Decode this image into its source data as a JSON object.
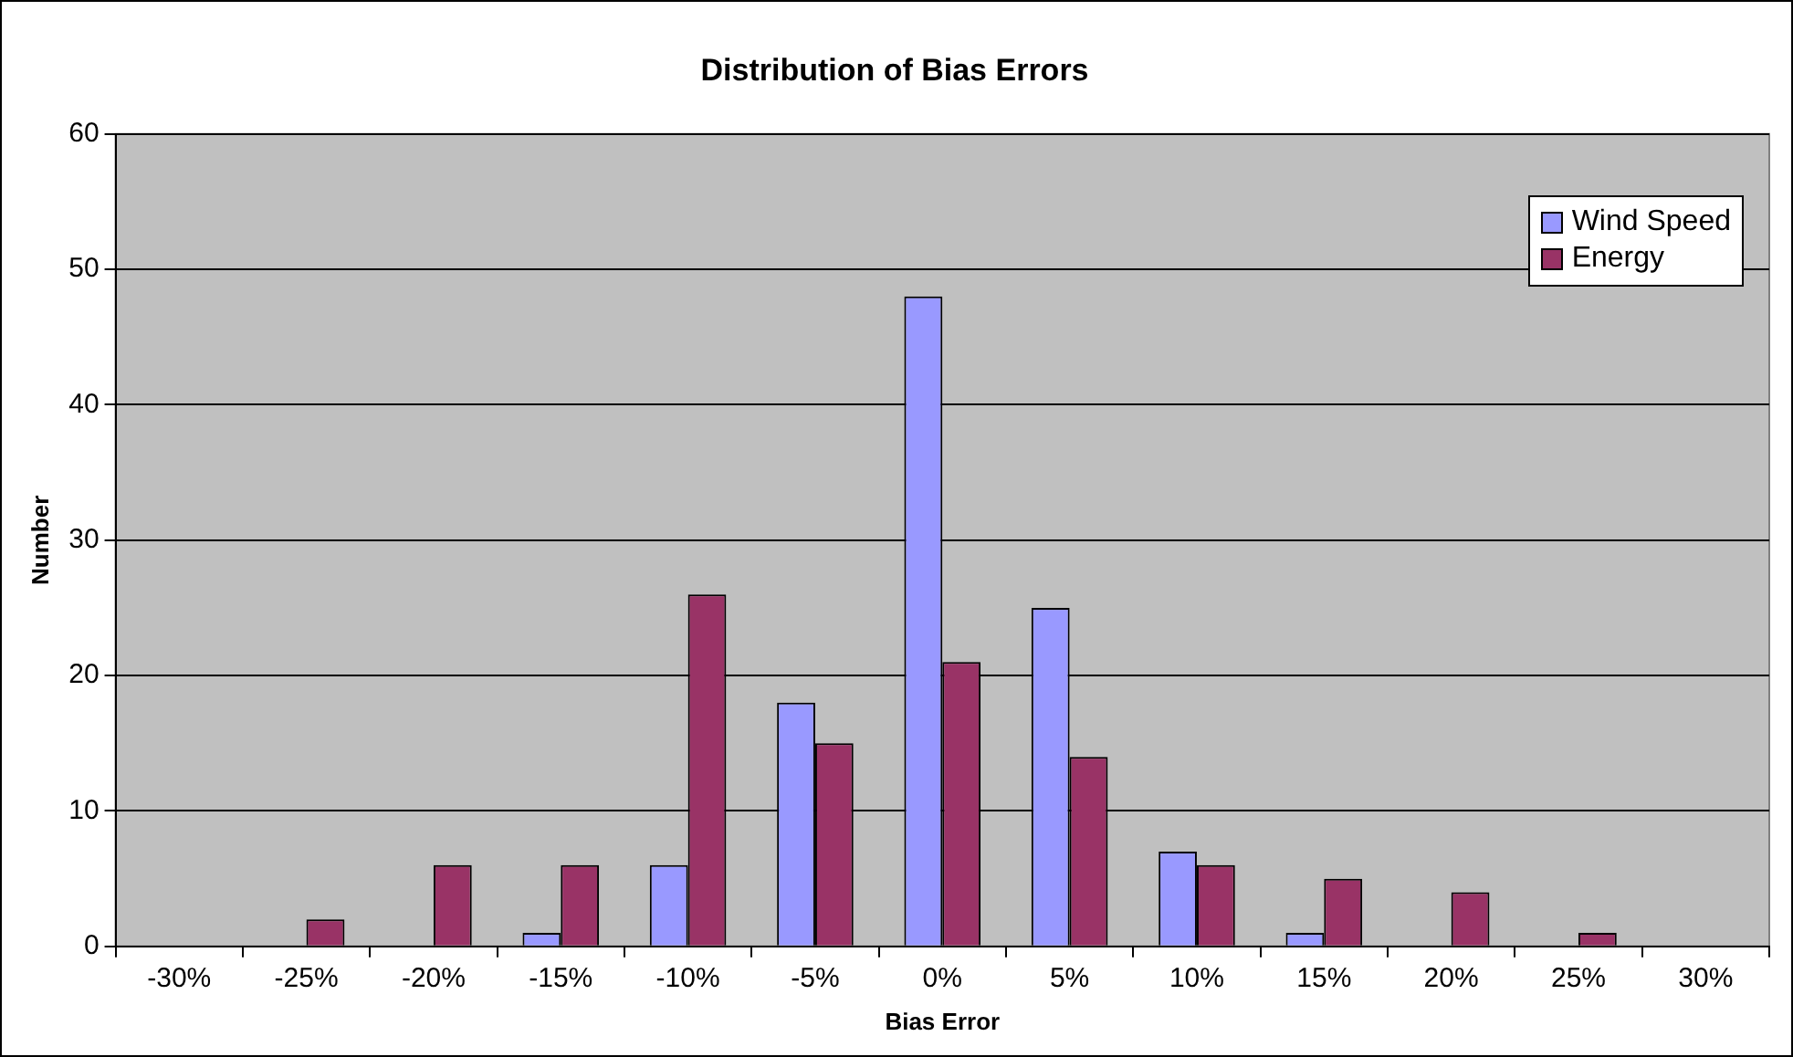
{
  "chart_data": {
    "type": "bar",
    "title": "Distribution of Bias Errors",
    "xlabel": "Bias Error",
    "ylabel": "Number",
    "categories": [
      "-30%",
      "-25%",
      "-20%",
      "-15%",
      "-10%",
      "-5%",
      "0%",
      "5%",
      "10%",
      "15%",
      "20%",
      "25%",
      "30%"
    ],
    "series": [
      {
        "name": "Wind Speed",
        "color": "#9999ff",
        "values": [
          0,
          0,
          0,
          1,
          6,
          18,
          48,
          25,
          7,
          1,
          0,
          0,
          0
        ]
      },
      {
        "name": "Energy",
        "color": "#993366",
        "values": [
          0,
          2,
          6,
          6,
          26,
          15,
          21,
          14,
          6,
          5,
          4,
          1,
          0
        ]
      }
    ],
    "ylim": [
      0,
      60
    ],
    "yticks": [
      0,
      10,
      20,
      30,
      40,
      50,
      60
    ],
    "grid": "y",
    "legend": "top right"
  }
}
